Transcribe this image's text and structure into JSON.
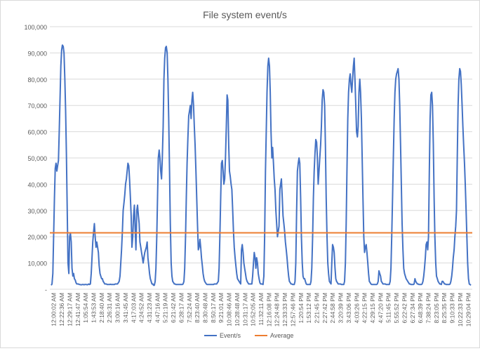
{
  "chart_data": {
    "type": "line",
    "title": "File system event/s",
    "xlabel": "",
    "ylabel": "",
    "ylim": [
      0,
      100000
    ],
    "yticks": [
      "-",
      "10,000",
      "20,000",
      "30,000",
      "40,000",
      "50,000",
      "60,000",
      "70,000",
      "80,000",
      "90,000",
      "100,000"
    ],
    "xticks": [
      "12:00:02 AM",
      "12:22:36 AM",
      "12:29:17 AM",
      "12:41:47 AM",
      "1:05:54 AM",
      "1:43:53 AM",
      "2:18:40 AM",
      "2:26:31 AM",
      "3:00:16 AM",
      "3:41:45 AM",
      "4:17:03 AM",
      "4:24:52 AM",
      "4:31:23 AM",
      "4:47:16 AM",
      "5:21:19 AM",
      "6:21:42 AM",
      "6:28:17 AM",
      "7:52:24 AM",
      "8:23:40 AM",
      "8:30:48 AM",
      "8:50:17 AM",
      "9:21:01 AM",
      "10:08:46 AM",
      "10:28:48 AM",
      "10:31:17 AM",
      "10:52:05 AM",
      "11:32:11 AM",
      "12:16:08 PM",
      "12:24:48 PM",
      "12:33:33 PM",
      "12:57:46 PM",
      "1:20:54 PM",
      "1:53:12 PM",
      "2:21:45 PM",
      "2:27:42 PM",
      "2:44:58 PM",
      "3:20:39 PM",
      "3:43:06 PM",
      "4:03:26 PM",
      "4:22:15 PM",
      "4:29:15 PM",
      "4:47:20 PM",
      "5:11:45 PM",
      "5:55:52 PM",
      "6:22:42 PM",
      "6:27:34 PM",
      "6:48:39 PM",
      "7:38:24 PM",
      "8:23:05 PM",
      "8:25:35 PM",
      "9:10:33 PM",
      "10:22:33 PM",
      "10:29:04 PM"
    ],
    "series": [
      {
        "name": "Event/s",
        "color": "#4472C4",
        "values": [
          1500,
          2000,
          6000,
          20000,
          35000,
          46000,
          48000,
          45000,
          47000,
          49000,
          60000,
          72000,
          85000,
          91000,
          93000,
          92500,
          90000,
          80000,
          68000,
          52000,
          30000,
          10000,
          6000,
          20000,
          21500,
          18000,
          8000,
          5000,
          6000,
          4000,
          3500,
          2500,
          2000,
          2000,
          2000,
          1800,
          1800,
          1700,
          1700,
          1800,
          1800,
          1700,
          1800,
          1800,
          1800,
          1700,
          1800,
          2000,
          1800,
          2000,
          6000,
          12000,
          18000,
          22000,
          25000,
          20000,
          16000,
          18000,
          16000,
          14000,
          9000,
          6000,
          5000,
          4000,
          4000,
          3000,
          2500,
          2000,
          2000,
          2000,
          1800,
          1800,
          1800,
          1800,
          1900,
          1800,
          1800,
          1800,
          1800,
          1800,
          2000,
          2000,
          2000,
          2000,
          2500,
          3000,
          5000,
          10000,
          15000,
          22000,
          30000,
          33000,
          36000,
          40000,
          42000,
          45000,
          48000,
          47000,
          42000,
          35000,
          28000,
          16000,
          20000,
          28000,
          32000,
          23000,
          15000,
          30000,
          32000,
          28000,
          25000,
          18000,
          16000,
          14000,
          12000,
          10000,
          12000,
          14000,
          15000,
          16000,
          18000,
          12000,
          9000,
          6000,
          4000,
          3000,
          2000,
          2000,
          1500,
          1500,
          3000,
          8000,
          20000,
          35000,
          50000,
          53000,
          50000,
          45000,
          42000,
          50000,
          62000,
          80000,
          88000,
          92000,
          92500,
          90000,
          80000,
          65000,
          45000,
          25000,
          10000,
          5000,
          3000,
          2500,
          2000,
          2000,
          1800,
          1800,
          1800,
          1800,
          1800,
          1800,
          1800,
          1800,
          1800,
          2000,
          3000,
          8000,
          20000,
          35000,
          48000,
          58000,
          66000,
          68000,
          70000,
          65000,
          72000,
          75000,
          70000,
          62000,
          55000,
          45000,
          35000,
          25000,
          15000,
          16000,
          19000,
          16000,
          12000,
          9000,
          6000,
          4000,
          3000,
          2500,
          2000,
          1800,
          1800,
          1800,
          1800,
          1800,
          1800,
          1800,
          1800,
          1800,
          2000,
          2000,
          2000,
          2000,
          2500,
          3000,
          8000,
          20000,
          35000,
          48000,
          49000,
          45000,
          40000,
          42000,
          50000,
          62000,
          74000,
          72000,
          55000,
          45000,
          43000,
          40000,
          38000,
          30000,
          22000,
          16000,
          12000,
          9000,
          6000,
          4000,
          3500,
          3000,
          2500,
          2000,
          15000,
          17000,
          14000,
          10000,
          8000,
          6000,
          4000,
          3000,
          2500,
          2000,
          2000,
          2000,
          2000,
          2000,
          5000,
          10000,
          14000,
          12000,
          8000,
          12000,
          10000,
          6000,
          4000,
          2500,
          2000,
          2000,
          2000,
          1800,
          5000,
          20000,
          45000,
          60000,
          75000,
          85000,
          88000,
          85000,
          75000,
          60000,
          50000,
          54000,
          48000,
          42000,
          38000,
          30000,
          25000,
          20000,
          22000,
          24000,
          38000,
          40000,
          42000,
          35000,
          28000,
          25000,
          22000,
          18000,
          15000,
          12000,
          8000,
          5000,
          3000,
          2500,
          2000,
          2000,
          1800,
          1800,
          1800,
          3000,
          10000,
          30000,
          45000,
          48000,
          50000,
          48000,
          35000,
          20000,
          10000,
          5000,
          4000,
          4000,
          3000,
          2000,
          1800,
          1800,
          1800,
          1800,
          1800,
          3000,
          8000,
          20000,
          35000,
          45000,
          52000,
          57000,
          56000,
          50000,
          40000,
          45000,
          50000,
          55000,
          62000,
          72000,
          76000,
          75000,
          70000,
          55000,
          35000,
          20000,
          10000,
          6000,
          3000,
          2500,
          2000,
          10000,
          17000,
          16000,
          14000,
          8000,
          4000,
          3000,
          2500,
          2000,
          2000,
          2000,
          2000,
          1800,
          1800,
          1800,
          1800,
          3000,
          10000,
          25000,
          45000,
          65000,
          75000,
          80000,
          82000,
          78000,
          75000,
          80000,
          85000,
          88000,
          80000,
          70000,
          60000,
          58000,
          62000,
          75000,
          80000,
          75000,
          65000,
          50000,
          35000,
          20000,
          14000,
          16000,
          17000,
          14000,
          10000,
          6000,
          3000,
          2500,
          2000,
          1800,
          1800,
          1800,
          1800,
          1800,
          1800,
          1800,
          2000,
          3000,
          7000,
          6000,
          5000,
          3000,
          2500,
          2000,
          2000,
          2000,
          2000,
          1800,
          1800,
          1800,
          1800,
          1800,
          3000,
          8000,
          20000,
          35000,
          50000,
          65000,
          75000,
          80000,
          82000,
          83000,
          84000,
          80000,
          70000,
          55000,
          40000,
          25000,
          15000,
          8000,
          6000,
          5000,
          4000,
          3500,
          3000,
          2500,
          2000,
          2000,
          1800,
          1800,
          1800,
          1800,
          2000,
          4000,
          3000,
          2500,
          2000,
          2000,
          1800,
          1800,
          1800,
          1800,
          2000,
          3000,
          5000,
          8000,
          12000,
          17000,
          18000,
          15000,
          20000,
          45000,
          65000,
          74000,
          75000,
          70000,
          55000,
          35000,
          20000,
          10000,
          5000,
          4000,
          3000,
          2500,
          2000,
          2000,
          1800,
          3000,
          3000,
          2500,
          2000,
          2000,
          1800,
          1800,
          1800,
          1800,
          1800,
          2000,
          3000,
          5000,
          8000,
          12000,
          15000,
          20000,
          24000,
          30000,
          50000,
          70000,
          80000,
          84000,
          83000,
          78000,
          70000,
          62000,
          55000,
          48000,
          40000,
          30000,
          20000,
          10000,
          4000,
          2000,
          1800,
          1500
        ]
      },
      {
        "name": "Average",
        "color": "#ED7D31",
        "values": [
          21500
        ]
      }
    ],
    "legend": "bottom",
    "grid": true
  }
}
